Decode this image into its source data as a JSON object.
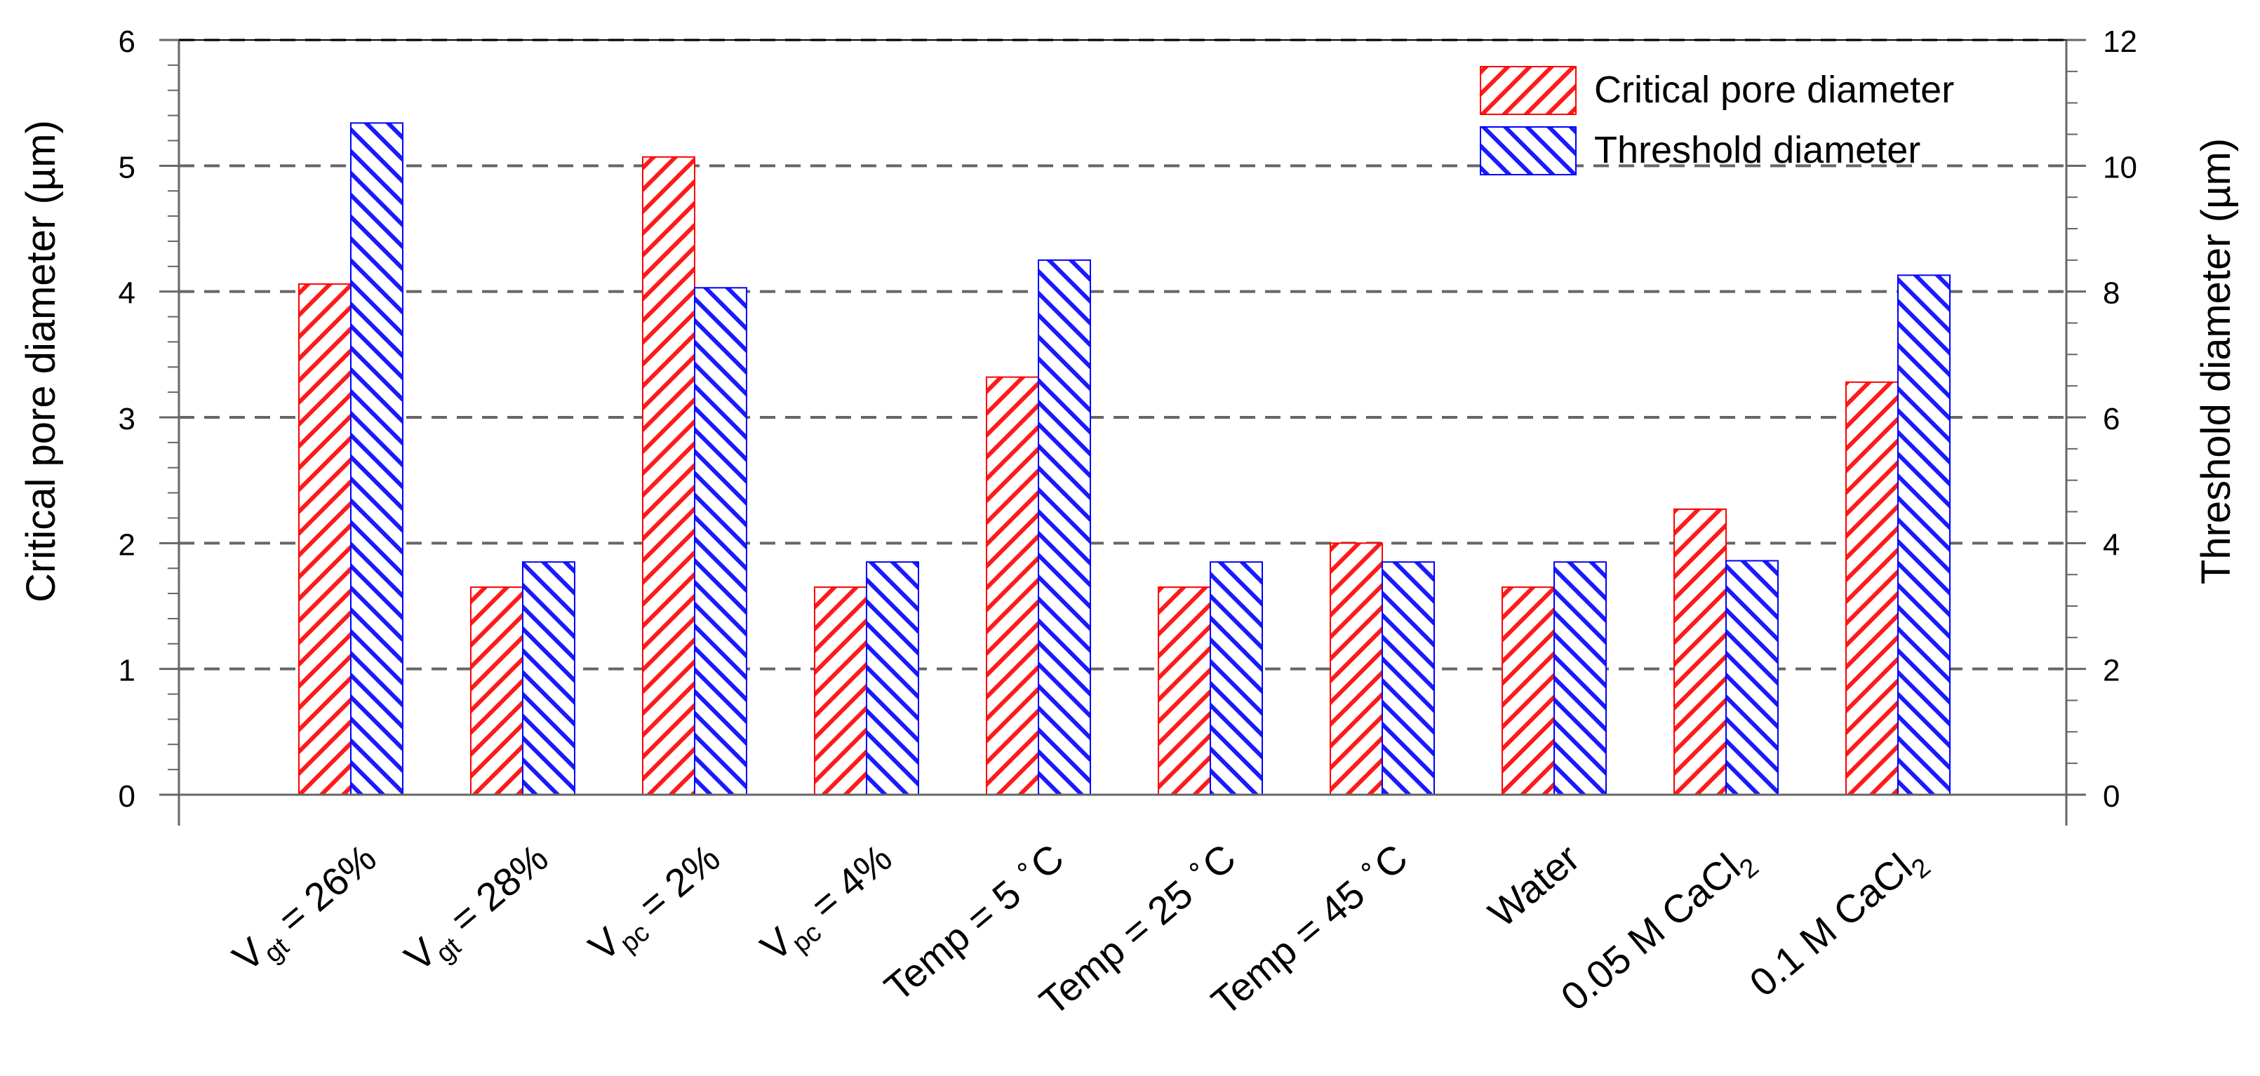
{
  "chart_data": {
    "type": "bar",
    "title": "",
    "ylabel_left": "Critical pore diameter (µm)",
    "ylabel_right": "Threshold diameter (µm)",
    "ylim_left": [
      0,
      6
    ],
    "ylim_right": [
      0,
      12
    ],
    "yticks_left": [
      "0",
      "1",
      "2",
      "3",
      "4",
      "5",
      "6"
    ],
    "yticks_right": [
      "0",
      "2",
      "4",
      "6",
      "8",
      "10",
      "12"
    ],
    "grid": "horizontal dashed",
    "legend_position": "top-right",
    "categories": [
      {
        "main": "V",
        "sub": "gt",
        "rest": " = 26%"
      },
      {
        "main": "V",
        "sub": "gt",
        "rest": " = 28%"
      },
      {
        "main": "V",
        "sub": "pc",
        "rest": " = 2%"
      },
      {
        "main": "V",
        "sub": "pc",
        "rest": " = 4%"
      },
      {
        "main": "Temp = 5 ",
        "sup": "∘",
        "rest": "C"
      },
      {
        "main": "Temp = 25 ",
        "sup": "∘",
        "rest": "C"
      },
      {
        "main": "Temp = 45 ",
        "sup": "∘",
        "rest": "C"
      },
      {
        "main": "Water"
      },
      {
        "main": "0.05 M CaCl",
        "sub": "2"
      },
      {
        "main": "0.1 M CaCl",
        "sub": "2"
      }
    ],
    "series": [
      {
        "name": "Critical pore diameter",
        "axis": "left",
        "color": "#ff0000",
        "values": [
          4.06,
          1.65,
          5.07,
          1.65,
          3.32,
          1.65,
          2.0,
          1.65,
          2.27,
          3.28
        ]
      },
      {
        "name": "Threshold diameter",
        "axis": "right",
        "color": "#0000ff",
        "values": [
          10.68,
          3.7,
          8.06,
          3.7,
          8.5,
          3.7,
          3.7,
          3.7,
          3.72,
          8.26
        ]
      }
    ]
  }
}
